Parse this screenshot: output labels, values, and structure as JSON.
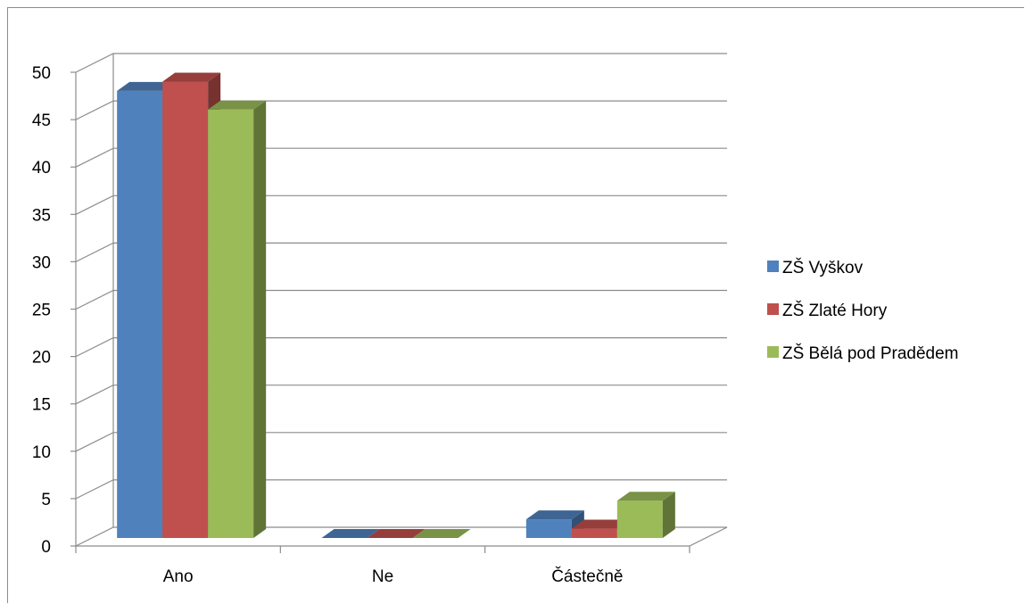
{
  "chart_data": {
    "type": "bar",
    "style": "3d-clustered-column",
    "categories": [
      "Ano",
      "Ne",
      "Částečně"
    ],
    "series": [
      {
        "name": "ZŠ Vyškov",
        "values": [
          48,
          0,
          2
        ],
        "color": "#4F81BD"
      },
      {
        "name": "ZŠ Zlaté Hory",
        "values": [
          49,
          0,
          1
        ],
        "color": "#C0504D"
      },
      {
        "name": "ZŠ Bělá pod Pradědem",
        "values": [
          46,
          0,
          4
        ],
        "color": "#9BBB59"
      }
    ],
    "yticks": [
      "0",
      "5",
      "10",
      "15",
      "20",
      "25",
      "30",
      "35",
      "40",
      "45",
      "50"
    ],
    "ylim": [
      0,
      50
    ],
    "grid": true,
    "legend": "right"
  }
}
